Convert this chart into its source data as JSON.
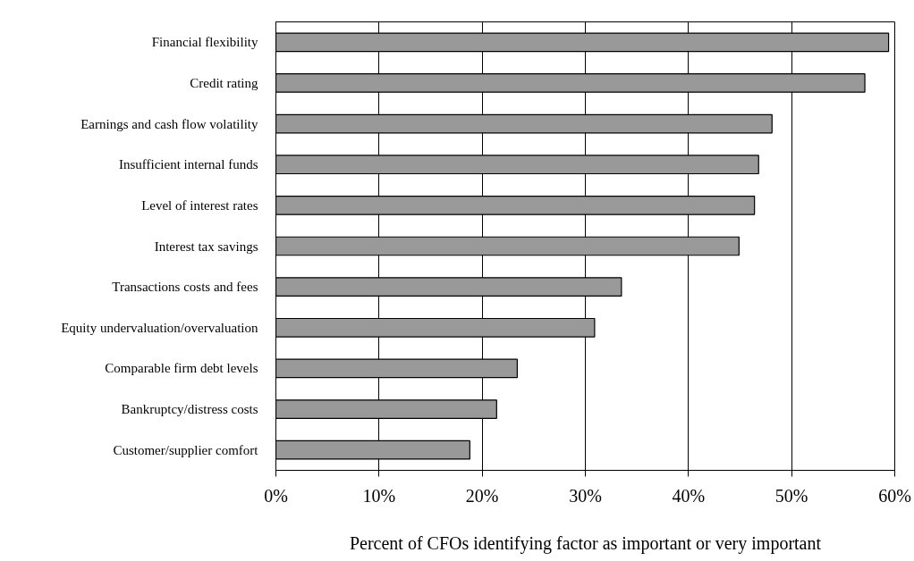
{
  "chart_data": {
    "type": "bar",
    "orientation": "horizontal",
    "categories": [
      "Financial flexibility",
      "Credit rating",
      "Earnings and cash flow volatility",
      "Insufficient internal funds",
      "Level of interest rates",
      "Interest tax savings",
      "Transactions costs and fees",
      "Equity undervaluation/overvaluation",
      "Comparable firm debt levels",
      "Bankruptcy/distress costs",
      "Customer/supplier comfort"
    ],
    "values": [
      59.4,
      57.1,
      48.1,
      46.8,
      46.4,
      44.9,
      33.5,
      30.9,
      23.4,
      21.4,
      18.8
    ],
    "color": "#999999",
    "xlabel": "Percent of CFOs identifying factor as important or very important",
    "xlim": [
      0,
      60
    ],
    "xticks": [
      {
        "value": 0,
        "label": "0%"
      },
      {
        "value": 10,
        "label": "10%"
      },
      {
        "value": 20,
        "label": "20%"
      },
      {
        "value": 30,
        "label": "30%"
      },
      {
        "value": 40,
        "label": "40%"
      },
      {
        "value": 50,
        "label": "50%"
      },
      {
        "value": 60,
        "label": "60%"
      }
    ],
    "grid": "x"
  }
}
